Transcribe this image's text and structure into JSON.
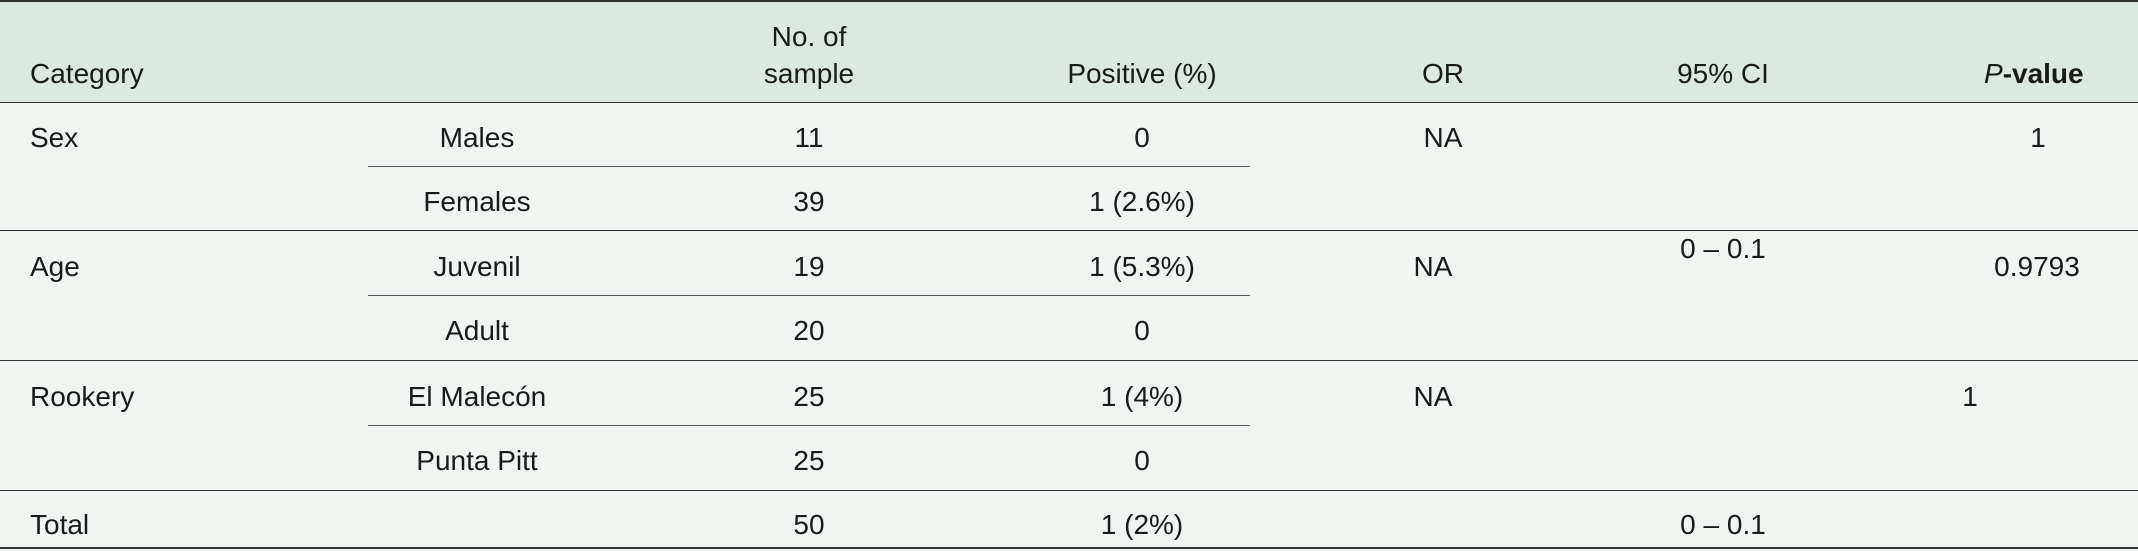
{
  "header": {
    "category": "Category",
    "sample_line1": "No. of",
    "sample_line2": "sample",
    "positive": "Positive (%)",
    "or": "OR",
    "ci": "95% CI",
    "pvalue_p": "P",
    "pvalue_rest": "-value"
  },
  "rows": {
    "sex": {
      "category": "Sex",
      "sub1": {
        "label": "Males",
        "samples": "11",
        "positive": "0"
      },
      "sub2": {
        "label": "Females",
        "samples": "39",
        "positive": "1 (2.6%)"
      },
      "or": "NA",
      "pvalue": "1"
    },
    "age": {
      "category": "Age",
      "sub1": {
        "label": "Juvenil",
        "samples": "19",
        "positive": "1 (5.3%)"
      },
      "sub2": {
        "label": "Adult",
        "samples": "20",
        "positive": "0"
      },
      "or": "NA",
      "pvalue": "0.9793"
    },
    "rookery": {
      "category": "Rookery",
      "sub1": {
        "label": "El Malecón",
        "samples": "25",
        "positive": "1 (4%)"
      },
      "sub2": {
        "label": "Punta Pitt",
        "samples": "25",
        "positive": "0"
      },
      "or": "NA",
      "pvalue": "1"
    },
    "ci_shared": "0 – 0.1",
    "total": {
      "category": "Total",
      "samples": "50",
      "positive": "1 (2%)",
      "ci": "0 – 0.1"
    }
  }
}
